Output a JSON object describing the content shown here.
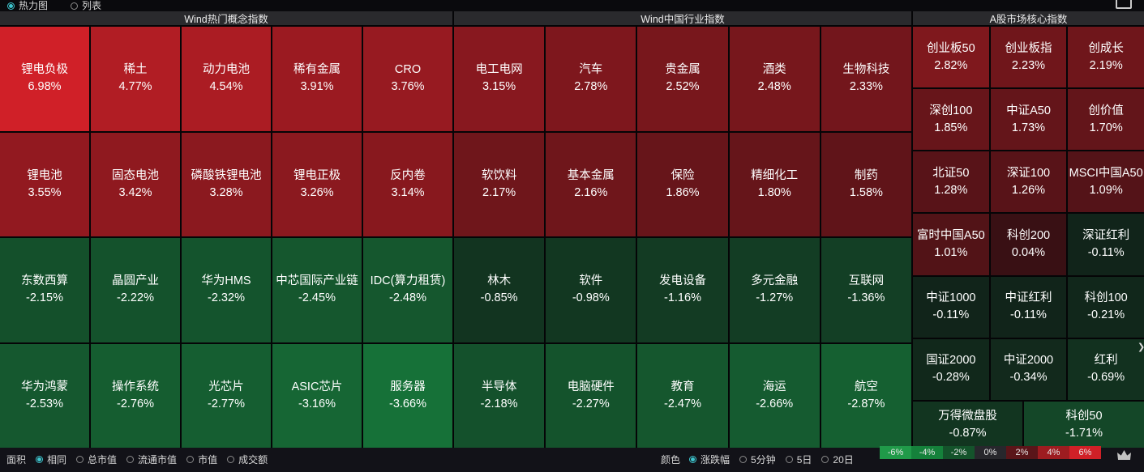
{
  "topbar": {
    "options": [
      {
        "label": "热力图",
        "selected": true
      },
      {
        "label": "列表",
        "selected": false
      }
    ]
  },
  "sections": [
    {
      "title": "Wind热门概念指数",
      "cols": 5,
      "tiles": [
        {
          "name": "锂电负极",
          "pct": 6.98,
          "display": "6.98%"
        },
        {
          "name": "稀土",
          "pct": 4.77,
          "display": "4.77%"
        },
        {
          "name": "动力电池",
          "pct": 4.54,
          "display": "4.54%"
        },
        {
          "name": "稀有金属",
          "pct": 3.91,
          "display": "3.91%"
        },
        {
          "name": "CRO",
          "pct": 3.76,
          "display": "3.76%"
        },
        {
          "name": "锂电池",
          "pct": 3.55,
          "display": "3.55%"
        },
        {
          "name": "固态电池",
          "pct": 3.42,
          "display": "3.42%"
        },
        {
          "name": "磷酸铁锂电池",
          "pct": 3.28,
          "display": "3.28%"
        },
        {
          "name": "锂电正极",
          "pct": 3.26,
          "display": "3.26%"
        },
        {
          "name": "反内卷",
          "pct": 3.14,
          "display": "3.14%"
        },
        {
          "name": "东数西算",
          "pct": -2.15,
          "display": "-2.15%"
        },
        {
          "name": "晶圆产业",
          "pct": -2.22,
          "display": "-2.22%"
        },
        {
          "name": "华为HMS",
          "pct": -2.32,
          "display": "-2.32%"
        },
        {
          "name": "中芯国际产业链",
          "pct": -2.45,
          "display": "-2.45%"
        },
        {
          "name": "IDC(算力租赁)",
          "pct": -2.48,
          "display": "-2.48%"
        },
        {
          "name": "华为鸿蒙",
          "pct": -2.53,
          "display": "-2.53%"
        },
        {
          "name": "操作系统",
          "pct": -2.76,
          "display": "-2.76%"
        },
        {
          "name": "光芯片",
          "pct": -2.77,
          "display": "-2.77%"
        },
        {
          "name": "ASIC芯片",
          "pct": -3.16,
          "display": "-3.16%"
        },
        {
          "name": "服务器",
          "pct": -3.66,
          "display": "-3.66%"
        }
      ]
    },
    {
      "title": "Wind中国行业指数",
      "cols": 5,
      "tiles": [
        {
          "name": "电工电网",
          "pct": 3.15,
          "display": "3.15%"
        },
        {
          "name": "汽车",
          "pct": 2.78,
          "display": "2.78%"
        },
        {
          "name": "贵金属",
          "pct": 2.52,
          "display": "2.52%"
        },
        {
          "name": "酒类",
          "pct": 2.48,
          "display": "2.48%"
        },
        {
          "name": "生物科技",
          "pct": 2.33,
          "display": "2.33%"
        },
        {
          "name": "软饮料",
          "pct": 2.17,
          "display": "2.17%"
        },
        {
          "name": "基本金属",
          "pct": 2.16,
          "display": "2.16%"
        },
        {
          "name": "保险",
          "pct": 1.86,
          "display": "1.86%"
        },
        {
          "name": "精细化工",
          "pct": 1.8,
          "display": "1.80%"
        },
        {
          "name": "制药",
          "pct": 1.58,
          "display": "1.58%"
        },
        {
          "name": "林木",
          "pct": -0.85,
          "display": "-0.85%"
        },
        {
          "name": "软件",
          "pct": -0.98,
          "display": "-0.98%"
        },
        {
          "name": "发电设备",
          "pct": -1.16,
          "display": "-1.16%"
        },
        {
          "name": "多元金融",
          "pct": -1.27,
          "display": "-1.27%"
        },
        {
          "name": "互联网",
          "pct": -1.36,
          "display": "-1.36%"
        },
        {
          "name": "半导体",
          "pct": -2.18,
          "display": "-2.18%"
        },
        {
          "name": "电脑硬件",
          "pct": -2.27,
          "display": "-2.27%"
        },
        {
          "name": "教育",
          "pct": -2.47,
          "display": "-2.47%"
        },
        {
          "name": "海运",
          "pct": -2.66,
          "display": "-2.66%"
        },
        {
          "name": "航空",
          "pct": -2.87,
          "display": "-2.87%"
        }
      ]
    },
    {
      "title": "A股市场核心指数",
      "cols": 3,
      "tiles": [
        {
          "name": "创业板50",
          "pct": 2.82,
          "display": "2.82%"
        },
        {
          "name": "创业板指",
          "pct": 2.23,
          "display": "2.23%"
        },
        {
          "name": "创成长",
          "pct": 2.19,
          "display": "2.19%"
        },
        {
          "name": "深创100",
          "pct": 1.85,
          "display": "1.85%"
        },
        {
          "name": "中证A50",
          "pct": 1.73,
          "display": "1.73%"
        },
        {
          "name": "创价值",
          "pct": 1.7,
          "display": "1.70%"
        },
        {
          "name": "北证50",
          "pct": 1.28,
          "display": "1.28%"
        },
        {
          "name": "深证100",
          "pct": 1.26,
          "display": "1.26%"
        },
        {
          "name": "MSCI中国A50",
          "pct": 1.09,
          "display": "1.09%"
        },
        {
          "name": "富时中国A50",
          "pct": 1.01,
          "display": "1.01%"
        },
        {
          "name": "科创200",
          "pct": 0.04,
          "display": "0.04%"
        },
        {
          "name": "深证红利",
          "pct": -0.11,
          "display": "-0.11%"
        },
        {
          "name": "中证1000",
          "pct": -0.11,
          "display": "-0.11%"
        },
        {
          "name": "中证红利",
          "pct": -0.11,
          "display": "-0.11%"
        },
        {
          "name": "科创100",
          "pct": -0.21,
          "display": "-0.21%"
        },
        {
          "name": "国证2000",
          "pct": -0.28,
          "display": "-0.28%"
        },
        {
          "name": "中证2000",
          "pct": -0.34,
          "display": "-0.34%"
        },
        {
          "name": "红利",
          "pct": -0.69,
          "display": "-0.69%"
        }
      ],
      "wide_tiles": [
        {
          "name": "万得微盘股",
          "pct": -0.87,
          "display": "-0.87%"
        },
        {
          "name": "科创50",
          "pct": -1.71,
          "display": "-1.71%"
        }
      ]
    }
  ],
  "bottombar": {
    "area_label": "面积",
    "area_options": [
      {
        "label": "相同",
        "selected": true
      },
      {
        "label": "总市值",
        "selected": false
      },
      {
        "label": "流通市值",
        "selected": false
      },
      {
        "label": "市值",
        "selected": false
      },
      {
        "label": "成交额",
        "selected": false
      }
    ],
    "color_label": "颜色",
    "color_options": [
      {
        "label": "涨跌幅",
        "selected": true
      },
      {
        "label": "5分钟",
        "selected": false
      },
      {
        "label": "5日",
        "selected": false
      },
      {
        "label": "20日",
        "selected": false
      }
    ],
    "legend": [
      {
        "label": "-6%",
        "color": "#209a49"
      },
      {
        "label": "-4%",
        "color": "#15813b"
      },
      {
        "label": "-2%",
        "color": "#14532b"
      },
      {
        "label": "0%",
        "color": "#27272c"
      },
      {
        "label": "2%",
        "color": "#5a1519"
      },
      {
        "label": "4%",
        "color": "#9d1c20"
      },
      {
        "label": "6%",
        "color": "#d02027"
      }
    ]
  },
  "colors": {
    "up_zero": "#381014",
    "up_max": "#d02028",
    "down_zero": "#112219",
    "down_max": "#1aa34c",
    "range": 6,
    "accent": "#3ec6cf"
  }
}
